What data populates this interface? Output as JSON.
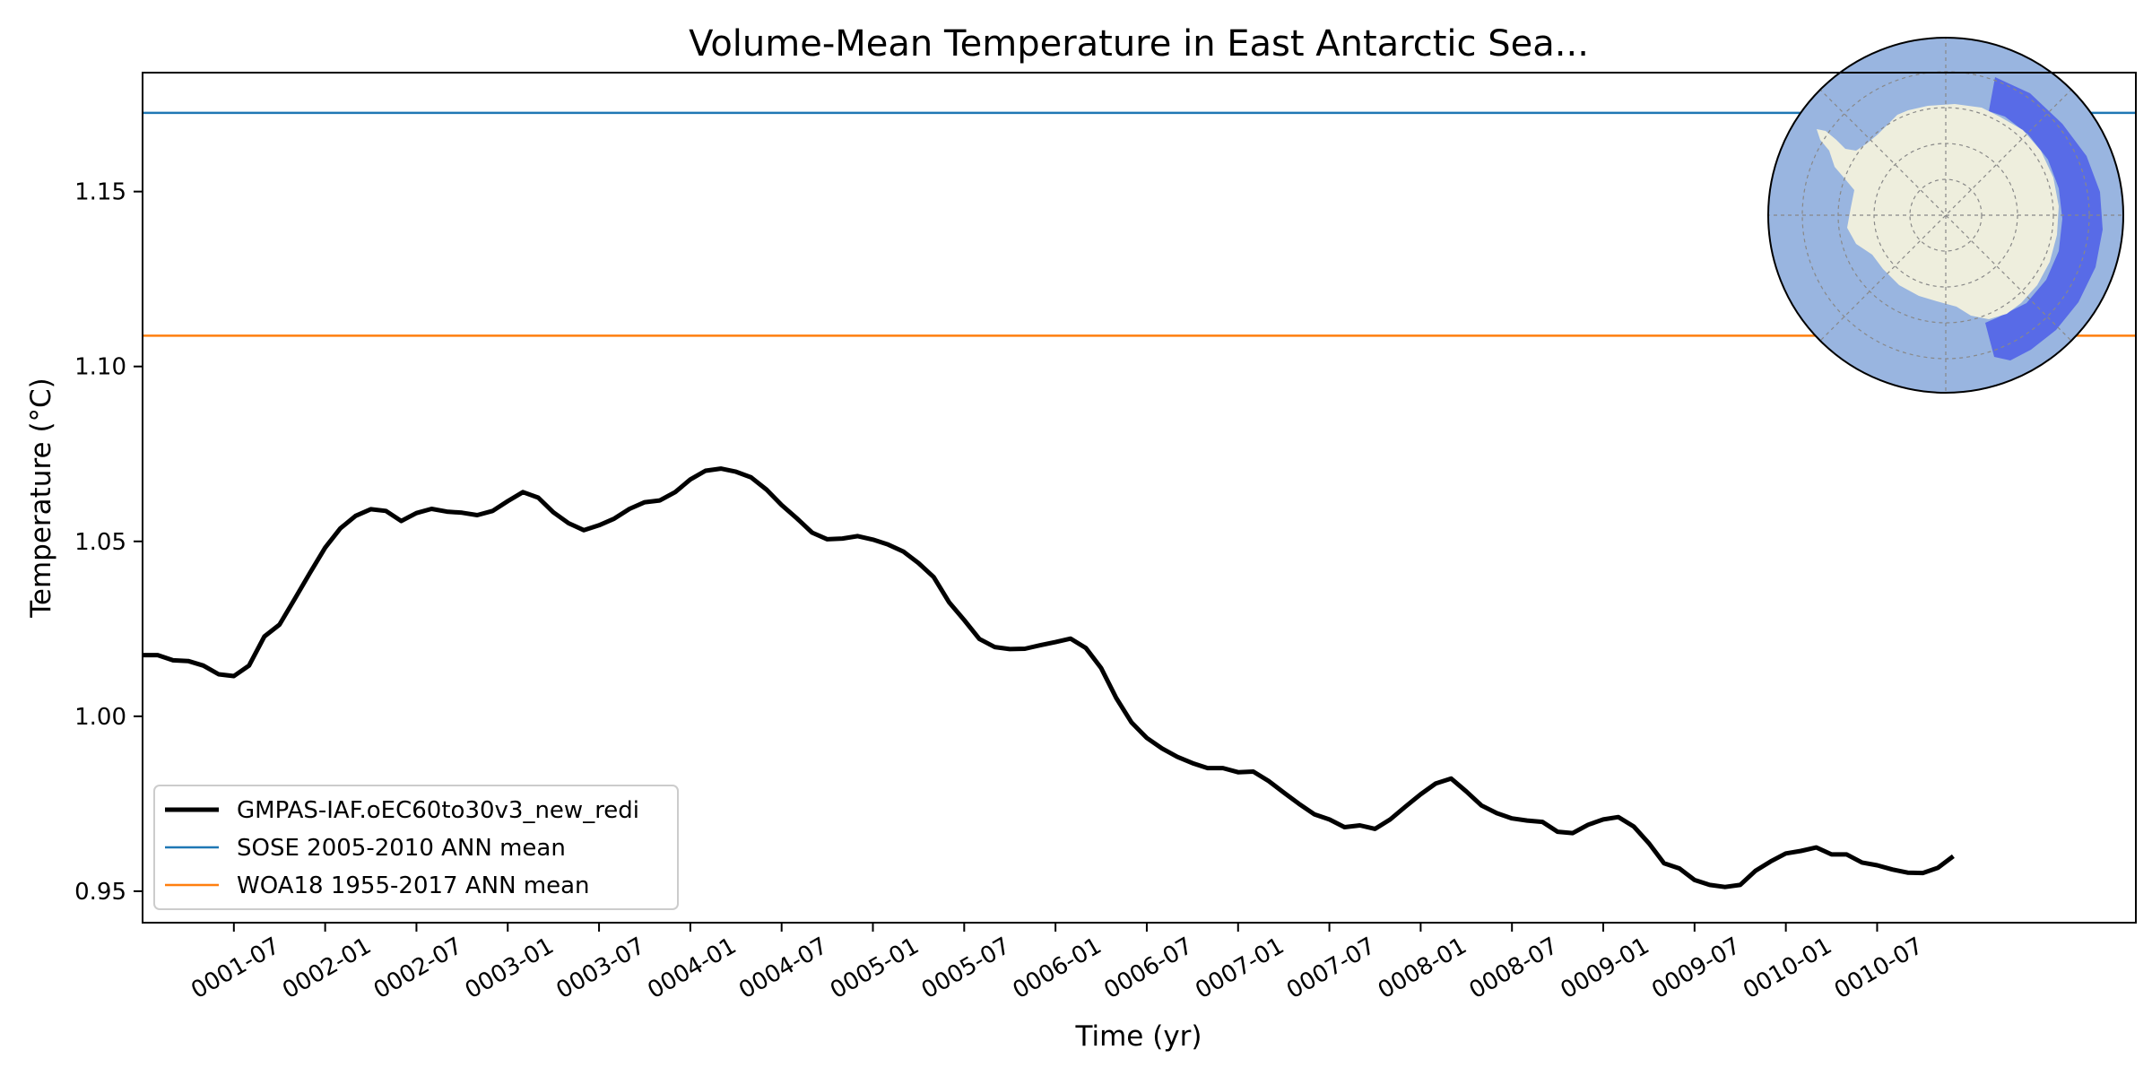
{
  "chart_data": {
    "type": "line",
    "title": "Volume-Mean Temperature in East Antarctic Sea...",
    "xlabel": "Time (yr)",
    "ylabel": "Temperature ($^\\circ$C)",
    "ylabel_display": "Temperature (°C)",
    "xlim": [
      0.0,
      10.917
    ],
    "ylim": [
      0.941,
      1.184
    ],
    "x_ticks": [
      {
        "value": 0.5,
        "label": "0001-07"
      },
      {
        "value": 1.0,
        "label": "0002-01"
      },
      {
        "value": 1.5,
        "label": "0002-07"
      },
      {
        "value": 2.0,
        "label": "0003-01"
      },
      {
        "value": 2.5,
        "label": "0003-07"
      },
      {
        "value": 3.0,
        "label": "0004-01"
      },
      {
        "value": 3.5,
        "label": "0004-07"
      },
      {
        "value": 4.0,
        "label": "0005-01"
      },
      {
        "value": 4.5,
        "label": "0005-07"
      },
      {
        "value": 5.0,
        "label": "0006-01"
      },
      {
        "value": 5.5,
        "label": "0006-07"
      },
      {
        "value": 6.0,
        "label": "0007-01"
      },
      {
        "value": 6.5,
        "label": "0007-07"
      },
      {
        "value": 7.0,
        "label": "0008-01"
      },
      {
        "value": 7.5,
        "label": "0008-07"
      },
      {
        "value": 8.0,
        "label": "0009-01"
      },
      {
        "value": 8.5,
        "label": "0009-07"
      },
      {
        "value": 9.0,
        "label": "0010-01"
      },
      {
        "value": 9.5,
        "label": "0010-07"
      }
    ],
    "y_ticks": [
      {
        "value": 0.95,
        "label": "0.95"
      },
      {
        "value": 1.0,
        "label": "1.00"
      },
      {
        "value": 1.05,
        "label": "1.05"
      },
      {
        "value": 1.1,
        "label": "1.10"
      },
      {
        "value": 1.15,
        "label": "1.15"
      }
    ],
    "series": [
      {
        "name": "GMPAS-IAF.oEC60to30v3_new_redi",
        "color": "#000000",
        "x": [
          0.0,
          0.083,
          0.167,
          0.25,
          0.333,
          0.417,
          0.5,
          0.583,
          0.667,
          0.75,
          0.833,
          0.917,
          1.0,
          1.083,
          1.167,
          1.25,
          1.333,
          1.417,
          1.5,
          1.583,
          1.667,
          1.75,
          1.833,
          1.917,
          2.0,
          2.083,
          2.167,
          2.25,
          2.333,
          2.417,
          2.5,
          2.583,
          2.667,
          2.75,
          2.833,
          2.917,
          3.0,
          3.083,
          3.167,
          3.25,
          3.333,
          3.417,
          3.5,
          3.583,
          3.667,
          3.75,
          3.833,
          3.917,
          4.0,
          4.083,
          4.167,
          4.25,
          4.333,
          4.417,
          4.5,
          4.583,
          4.667,
          4.75,
          4.833,
          4.917,
          5.0,
          5.083,
          5.167,
          5.25,
          5.333,
          5.417,
          5.5,
          5.583,
          5.667,
          5.75,
          5.833,
          5.917,
          6.0,
          6.083,
          6.167,
          6.25,
          6.333,
          6.417,
          6.5,
          6.583,
          6.667,
          6.75,
          6.833,
          6.917,
          7.0,
          7.083,
          7.167,
          7.25,
          7.333,
          7.417,
          7.5,
          7.583,
          7.667,
          7.75,
          7.833,
          7.917,
          8.0,
          8.083,
          8.167,
          8.25,
          8.333,
          8.417,
          8.5,
          8.583,
          8.667,
          8.75,
          8.833,
          8.917,
          9.0,
          9.083,
          9.167,
          9.25,
          9.333,
          9.417,
          9.5,
          9.583,
          9.667,
          9.75,
          9.833,
          9.917
        ],
        "values": [
          1.0175,
          1.0175,
          1.016,
          1.0158,
          1.0145,
          1.012,
          1.0115,
          1.0145,
          1.0228,
          1.0262,
          1.0335,
          1.041,
          1.0482,
          1.0537,
          1.0573,
          1.0592,
          1.0587,
          1.0558,
          1.0581,
          1.0593,
          1.0585,
          1.0582,
          1.0575,
          1.0587,
          1.0615,
          1.0641,
          1.0625,
          1.0583,
          1.0552,
          1.0532,
          1.0546,
          1.0565,
          1.0593,
          1.0612,
          1.0617,
          1.0641,
          1.0677,
          1.0702,
          1.0708,
          1.0699,
          1.0683,
          1.0648,
          1.0604,
          1.0566,
          1.0525,
          1.0506,
          1.0508,
          1.0515,
          1.0505,
          1.0491,
          1.0471,
          1.0438,
          1.0398,
          1.0326,
          1.0275,
          1.0221,
          1.0198,
          1.0192,
          1.0193,
          1.0203,
          1.0212,
          1.0222,
          1.0195,
          1.0138,
          1.0052,
          0.9982,
          0.9938,
          0.9908,
          0.9884,
          0.9866,
          0.9852,
          0.9852,
          0.984,
          0.9842,
          0.9815,
          0.9782,
          0.975,
          0.972,
          0.9705,
          0.9683,
          0.9688,
          0.9678,
          0.9705,
          0.9742,
          0.9777,
          0.9808,
          0.9822,
          0.9785,
          0.9745,
          0.9723,
          0.9708,
          0.9702,
          0.9698,
          0.967,
          0.9666,
          0.969,
          0.9705,
          0.9712,
          0.9685,
          0.9637,
          0.958,
          0.9565,
          0.9532,
          0.9518,
          0.9512,
          0.9518,
          0.9558,
          0.9585,
          0.9608,
          0.9615,
          0.9625,
          0.9605,
          0.9605,
          0.9582,
          0.9574,
          0.9562,
          0.9553,
          0.9552,
          0.9567,
          0.96
        ]
      },
      {
        "name": "SOSE 2005-2010 ANN mean",
        "color": "#1f77b4",
        "constant": 1.1725
      },
      {
        "name": "WOA18 1955-2017 ANN mean",
        "color": "#ff7f0e",
        "constant": 1.1088
      }
    ],
    "legend_position": "lower-left",
    "inset": "Antarctic polar map showing East Antarctic Seas region highlighted in blue",
    "colors": {
      "ocean": "#99b5e0",
      "land": "#eeeedd",
      "region": "#4c5ee8"
    }
  }
}
